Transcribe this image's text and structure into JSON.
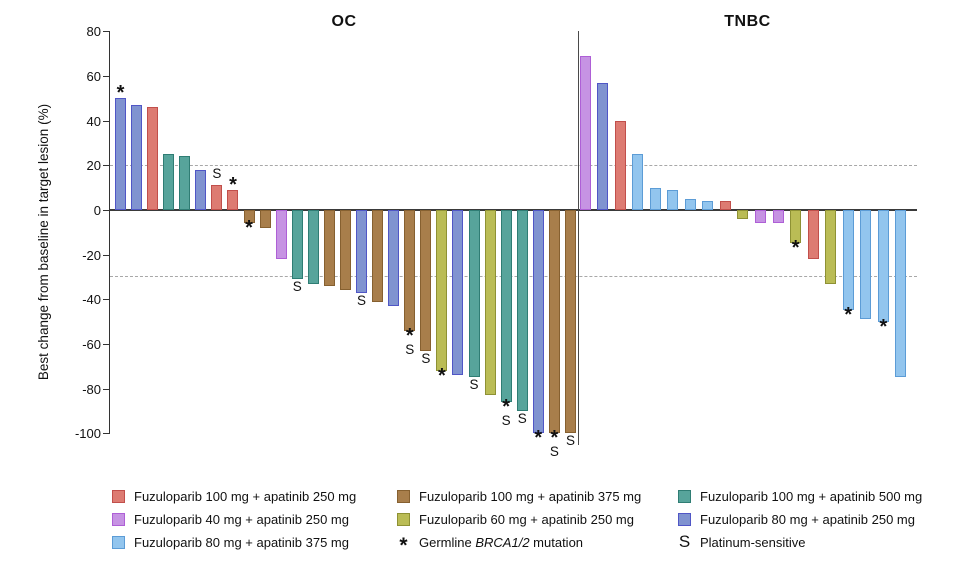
{
  "chart_data": {
    "type": "bar",
    "subtype": "waterfall",
    "ylabel": "Best change from baseline in target lesion (%)",
    "ylim": [
      -100,
      80
    ],
    "yticks": [
      80,
      60,
      40,
      20,
      0,
      -20,
      -40,
      -60,
      -80,
      -100
    ],
    "reference_lines": [
      20,
      -30
    ],
    "grid": "dashed horizontal at +20 and -30",
    "legend_position": "bottom",
    "marker_meanings": {
      "*": "Germline BRCA1/2 mutation",
      "S": "Platinum-sensitive"
    },
    "colors": {
      "red": {
        "fill": "#DD7B72",
        "edge": "#C14F4B"
      },
      "purple": {
        "fill": "#C693E3",
        "edge": "#AE5FD6"
      },
      "lightblue": {
        "fill": "#92C5EE",
        "edge": "#5C9CD6"
      },
      "brown": {
        "fill": "#A87E4B",
        "edge": "#866030"
      },
      "olive": {
        "fill": "#BABC55",
        "edge": "#8E9134"
      },
      "teal": {
        "fill": "#57A49B",
        "edge": "#2F7D74"
      },
      "blueviolet": {
        "fill": "#8093D0",
        "edge": "#5056C6"
      }
    },
    "panels": [
      {
        "title": "OC",
        "bars": [
          {
            "c": "blueviolet",
            "v": 50,
            "m": [
              "*"
            ]
          },
          {
            "c": "blueviolet",
            "v": 47
          },
          {
            "c": "red",
            "v": 46
          },
          {
            "c": "teal",
            "v": 25
          },
          {
            "c": "teal",
            "v": 24
          },
          {
            "c": "blueviolet",
            "v": 18
          },
          {
            "c": "red",
            "v": 11,
            "m": [
              "S"
            ]
          },
          {
            "c": "red",
            "v": 9,
            "m": [
              "*"
            ]
          },
          {
            "c": "brown",
            "v": -6,
            "m": [
              "*"
            ]
          },
          {
            "c": "brown",
            "v": -8
          },
          {
            "c": "purple",
            "v": -22
          },
          {
            "c": "teal",
            "v": -31,
            "m": [
              "S"
            ]
          },
          {
            "c": "teal",
            "v": -33
          },
          {
            "c": "brown",
            "v": -34
          },
          {
            "c": "brown",
            "v": -36
          },
          {
            "c": "blueviolet",
            "v": -37,
            "m": [
              "S"
            ]
          },
          {
            "c": "brown",
            "v": -41
          },
          {
            "c": "blueviolet",
            "v": -43
          },
          {
            "c": "brown",
            "v": -54,
            "m": [
              "*",
              "S"
            ]
          },
          {
            "c": "brown",
            "v": -63,
            "m": [
              "S"
            ]
          },
          {
            "c": "olive",
            "v": -72,
            "m": [
              "*"
            ]
          },
          {
            "c": "blueviolet",
            "v": -74
          },
          {
            "c": "teal",
            "v": -75,
            "m": [
              "S"
            ]
          },
          {
            "c": "olive",
            "v": -83
          },
          {
            "c": "teal",
            "v": -86,
            "m": [
              "*",
              "S"
            ]
          },
          {
            "c": "teal",
            "v": -90,
            "m": [
              "S"
            ]
          },
          {
            "c": "blueviolet",
            "v": -100,
            "m": [
              "*"
            ]
          },
          {
            "c": "brown",
            "v": -100,
            "m": [
              "*",
              "S"
            ]
          },
          {
            "c": "brown",
            "v": -100,
            "m": [
              "S"
            ]
          }
        ]
      },
      {
        "title": "TNBC",
        "bars": [
          {
            "c": "purple",
            "v": 69
          },
          {
            "c": "blueviolet",
            "v": 57
          },
          {
            "c": "red",
            "v": 40
          },
          {
            "c": "lightblue",
            "v": 25
          },
          {
            "c": "lightblue",
            "v": 10
          },
          {
            "c": "lightblue",
            "v": 9
          },
          {
            "c": "lightblue",
            "v": 5
          },
          {
            "c": "lightblue",
            "v": 4
          },
          {
            "c": "red",
            "v": 4
          },
          {
            "c": "olive",
            "v": -4
          },
          {
            "c": "purple",
            "v": -6
          },
          {
            "c": "purple",
            "v": -6
          },
          {
            "c": "olive",
            "v": -15,
            "m": [
              "*"
            ]
          },
          {
            "c": "red",
            "v": -22
          },
          {
            "c": "olive",
            "v": -33
          },
          {
            "c": "lightblue",
            "v": -45,
            "m": [
              "*"
            ]
          },
          {
            "c": "lightblue",
            "v": -49
          },
          {
            "c": "lightblue",
            "v": -50,
            "m": [
              "*"
            ]
          },
          {
            "c": "lightblue",
            "v": -75
          }
        ]
      }
    ],
    "legend": {
      "columns": [
        [
          {
            "key": "red",
            "label": "Fuzuloparib 100 mg + apatinib 250 mg"
          },
          {
            "key": "purple",
            "label": "Fuzuloparib 40 mg + apatinib 250 mg"
          },
          {
            "key": "lightblue",
            "label": "Fuzuloparib 80 mg + apatinib 375 mg"
          }
        ],
        [
          {
            "key": "brown",
            "label": "Fuzuloparib 100 mg + apatinib 375 mg"
          },
          {
            "key": "olive",
            "label": "Fuzuloparib 60 mg + apatinib 250 mg"
          },
          {
            "symbol": "*",
            "label_pre": "Germline ",
            "label_italic": "BRCA1/2",
            "label_post": " mutation"
          }
        ],
        [
          {
            "key": "teal",
            "label": "Fuzuloparib 100 mg + apatinib 500 mg"
          },
          {
            "key": "blueviolet",
            "label": "Fuzuloparib 80 mg + apatinib 250 mg"
          },
          {
            "symbol": "S",
            "label": "Platinum-sensitive"
          }
        ]
      ]
    }
  }
}
